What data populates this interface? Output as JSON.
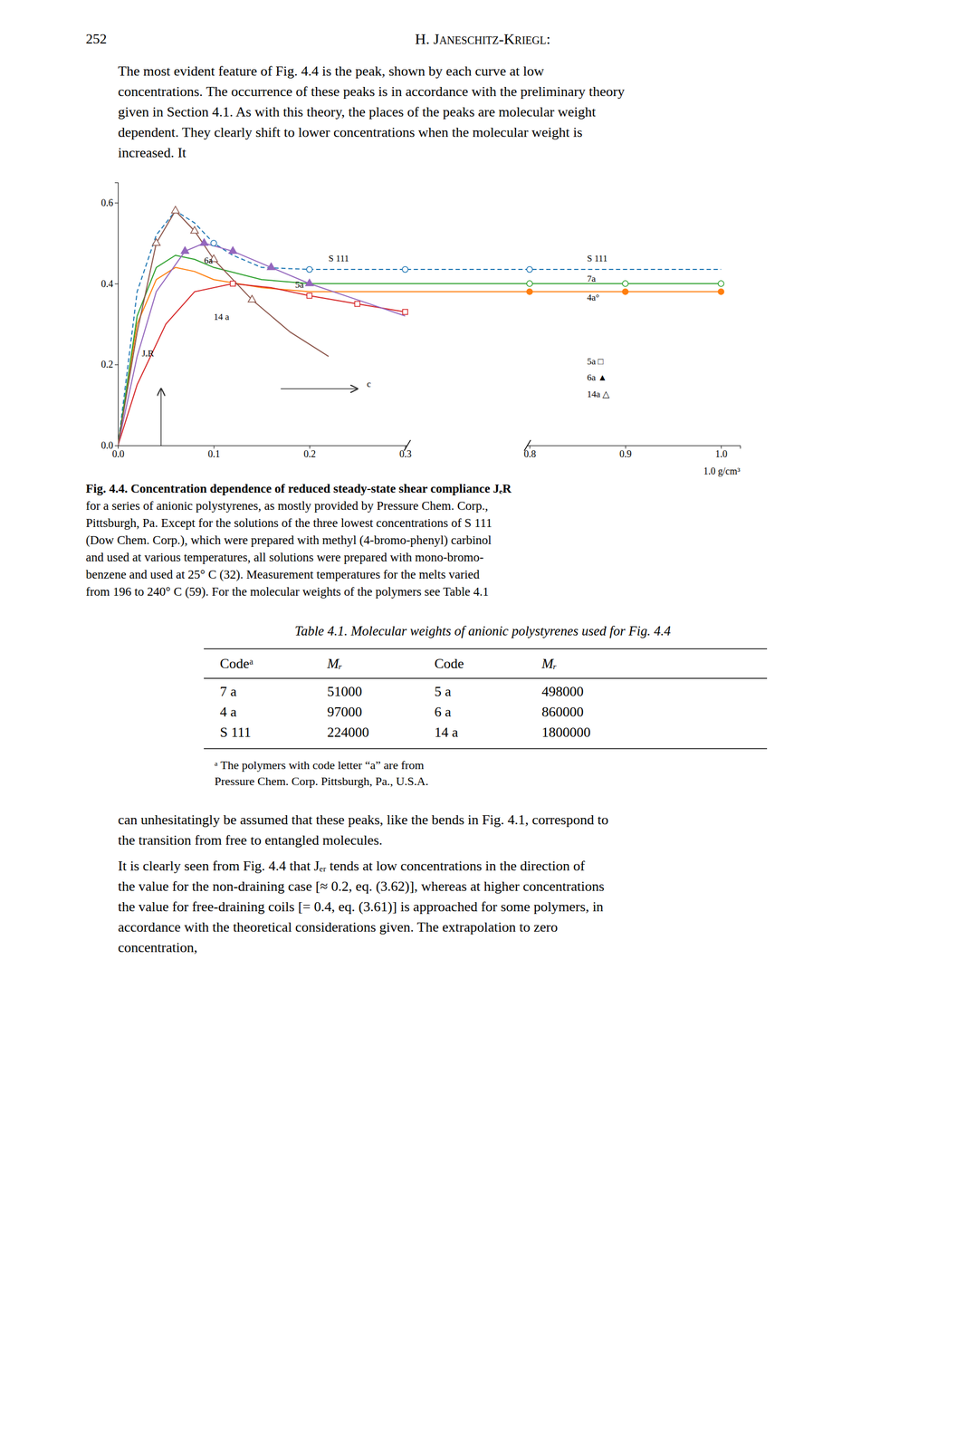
{
  "page": {
    "page_num": "252",
    "header": "H. Janeschitz-Kriegl:",
    "para1": "The most evident feature of Fig. 4.4 is the peak, shown by each curve at low concentrations. The occurrence of these peaks is in accordance with the preliminary theory given in Section 4.1. As with this theory, the places of the peaks are molecular weight dependent. They clearly shift to lower concentrations when the molecular weight is increased. It",
    "caption": [
      "Fig. 4.4. Concentration dependence of reduced steady-state shear compliance JₑR",
      "for a series of anionic polystyrenes, as mostly provided by Pressure Chem. Corp.,",
      "Pittsburgh, Pa. Except for the solutions of the three lowest concentrations of S 111",
      "(Dow Chem. Corp.), which were prepared with methyl (4-bromo-phenyl) carbinol",
      "and used at various temperatures, all solutions were prepared with mono-bromo-",
      "benzene and used at 25° C (32). Measurement temperatures for the melts varied",
      "from 196 to 240° C (59). For the molecular weights of the polymers see Table 4.1"
    ],
    "table_title": "Table 4.1. Molecular weights of anionic polystyrenes used for Fig. 4.4",
    "table_headers": [
      "Codeᵃ",
      "Mᵣ",
      "Code",
      "Mᵣ"
    ],
    "table_rows": [
      [
        "7 a",
        "51000",
        "5 a",
        "498000"
      ],
      [
        "4 a",
        "97000",
        "6 a",
        "860000"
      ],
      [
        "S 111",
        "224000",
        "14 a",
        "1800000"
      ]
    ],
    "table_footnote": [
      "ᵃ The polymers with code letter “a” are from",
      "Pressure Chem. Corp. Pittsburgh, Pa., U.S.A."
    ],
    "para2": "can unhesitatingly be assumed that these peaks, like the bends in Fig. 4.1, correspond to the transition from free to entangled molecules.",
    "para3": "It is clearly seen from Fig. 4.4 that Jₑᵣ tends at low concentrations in the direction of the value for the non-draining case [≈ 0.2, eq. (3.62)], whereas at higher concentrations the value for free-draining coils [= 0.4, eq. (3.61)] is approached for some polymers, in accordance with the theoretical considerations given. The extrapolation to zero concentration,"
  },
  "chart_data": {
    "type": "line",
    "xlim": [
      0,
      1.02
    ],
    "x_break": [
      0.3,
      0.8
    ],
    "ylim": [
      0,
      0.65
    ],
    "xticks": [
      {
        "value": 0,
        "label": "0.0"
      },
      0.1,
      0.2,
      0.3,
      0.8,
      0.9,
      {
        "value": 1,
        "label": "1.0"
      }
    ],
    "yticks": [
      {
        "value": 0,
        "label": "0.0"
      },
      0.2,
      0.4,
      0.6
    ],
    "xlabel": "1.0 g/cm³",
    "grid": false,
    "series": [
      {
        "type": "line",
        "line_style": "dashed",
        "x": [
          0.0,
          0.02,
          0.04,
          0.06,
          0.08,
          0.1,
          0.12,
          0.15,
          0.2,
          0.25,
          0.3,
          0.8,
          0.9,
          1.0
        ],
        "values": [
          0.0,
          0.38,
          0.52,
          0.58,
          0.55,
          0.5,
          0.47,
          0.44,
          0.435,
          0.435,
          0.435,
          0.435,
          0.435,
          0.435
        ]
      },
      {
        "type": "line",
        "line_style": "solid",
        "x": [
          0.0,
          0.02,
          0.04,
          0.06,
          0.08,
          0.1,
          0.15,
          0.2,
          0.8,
          0.9,
          1.0
        ],
        "values": [
          0.0,
          0.3,
          0.41,
          0.44,
          0.43,
          0.41,
          0.39,
          0.38,
          0.38,
          0.38,
          0.38
        ]
      },
      {
        "type": "line",
        "line_style": "solid",
        "x": [
          0.0,
          0.02,
          0.04,
          0.06,
          0.08,
          0.1,
          0.15,
          0.2,
          0.8,
          0.9,
          1.0
        ],
        "values": [
          0.0,
          0.32,
          0.44,
          0.47,
          0.46,
          0.44,
          0.41,
          0.4,
          0.4,
          0.4,
          0.4
        ]
      },
      {
        "type": "line",
        "line_style": "solid",
        "x": [
          0.0,
          0.02,
          0.05,
          0.08,
          0.12,
          0.16,
          0.2,
          0.25,
          0.3
        ],
        "values": [
          0.0,
          0.15,
          0.3,
          0.38,
          0.4,
          0.39,
          0.37,
          0.35,
          0.33
        ]
      },
      {
        "type": "line",
        "line_style": "solid",
        "x": [
          0.0,
          0.02,
          0.04,
          0.07,
          0.09,
          0.12,
          0.16,
          0.2,
          0.25,
          0.3
        ],
        "values": [
          0.0,
          0.22,
          0.38,
          0.48,
          0.5,
          0.48,
          0.44,
          0.4,
          0.36,
          0.32
        ]
      },
      {
        "type": "line",
        "line_style": "solid",
        "x": [
          0.0,
          0.02,
          0.04,
          0.06,
          0.08,
          0.1,
          0.14,
          0.18,
          0.22
        ],
        "values": [
          0.0,
          0.28,
          0.5,
          0.58,
          0.53,
          0.46,
          0.36,
          0.28,
          0.22
        ]
      },
      {
        "type": "scatter",
        "marker": "circle-open",
        "x": [
          0.1,
          0.2,
          0.3,
          0.8
        ],
        "values": [
          0.5,
          0.435,
          0.435,
          0.435
        ]
      },
      {
        "type": "scatter",
        "marker": "circle",
        "x": [
          0.8,
          0.9,
          1.0
        ],
        "values": [
          0.38,
          0.38,
          0.38
        ]
      },
      {
        "type": "scatter",
        "marker": "circle-open",
        "x": [
          0.8,
          0.9,
          1.0
        ],
        "values": [
          0.4,
          0.4,
          0.4
        ]
      },
      {
        "type": "scatter",
        "marker": "square-open",
        "x": [
          0.12,
          0.2,
          0.25,
          0.3
        ],
        "values": [
          0.4,
          0.37,
          0.35,
          0.33
        ]
      },
      {
        "type": "scatter",
        "marker": "triangle",
        "x": [
          0.07,
          0.09,
          0.12,
          0.16,
          0.2
        ],
        "values": [
          0.48,
          0.5,
          0.48,
          0.44,
          0.4
        ]
      },
      {
        "type": "scatter",
        "marker": "triangle-open",
        "x": [
          0.04,
          0.06,
          0.08,
          0.1,
          0.14
        ],
        "values": [
          0.5,
          0.58,
          0.53,
          0.46,
          0.36
        ]
      }
    ],
    "annotations": [
      {
        "text": "S 111",
        "x": 0.22,
        "y": 0.455
      },
      {
        "text": "6a",
        "x": 0.09,
        "y": 0.45
      },
      {
        "text": "5a",
        "x": 0.185,
        "y": 0.39
      },
      {
        "text": "14 a",
        "x": 0.1,
        "y": 0.31
      },
      {
        "text": "JₑR",
        "x": 0.025,
        "y": 0.22
      },
      {
        "text": "c",
        "x": 0.26,
        "y": 0.145
      },
      {
        "text": "S 111",
        "x": 0.86,
        "y": 0.455
      },
      {
        "text": "7a",
        "x": 0.86,
        "y": 0.405
      },
      {
        "text": "4a°",
        "x": 0.86,
        "y": 0.358
      },
      {
        "text": "5a □",
        "x": 0.86,
        "y": 0.2
      },
      {
        "text": "6a ▲",
        "x": 0.86,
        "y": 0.16
      },
      {
        "text": "14a △",
        "x": 0.86,
        "y": 0.12
      }
    ],
    "arrows": [
      {
        "x": [
          0.045,
          0.045
        ],
        "y": [
          0.0,
          0.14
        ]
      },
      {
        "x": [
          0.17,
          0.25
        ],
        "y": [
          0.14,
          0.14
        ]
      }
    ]
  }
}
